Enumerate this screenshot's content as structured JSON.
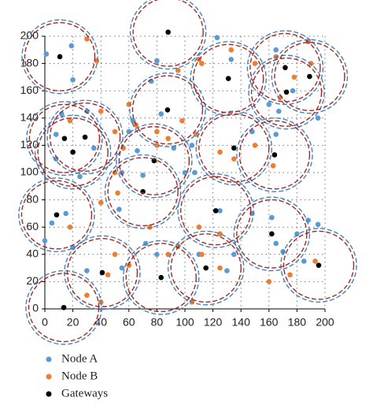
{
  "chart_data": {
    "type": "scatter",
    "xlim": [
      0,
      200
    ],
    "ylim": [
      0,
      200
    ],
    "xticks": [
      0,
      20,
      40,
      60,
      80,
      100,
      120,
      140,
      160,
      180,
      200
    ],
    "yticks": [
      0,
      20,
      40,
      60,
      80,
      100,
      120,
      140,
      160,
      180,
      200
    ],
    "grid": true,
    "series": [
      {
        "name": "Node A",
        "color": "#5b9bd5",
        "x": [
          1,
          19,
          20,
          123,
          80,
          76,
          133,
          165,
          177,
          160,
          167,
          195,
          63,
          83,
          8,
          12,
          8,
          30,
          35,
          92,
          105,
          148,
          165,
          100,
          25,
          66,
          60,
          53,
          55,
          70,
          107,
          125,
          148,
          162,
          180,
          188,
          195,
          15,
          5,
          20,
          30,
          55,
          72,
          80,
          130,
          135,
          110,
          165,
          170,
          185,
          0
        ],
        "y": [
          187,
          193,
          168,
          199,
          182,
          167,
          183,
          190,
          160,
          150,
          145,
          140,
          138,
          143,
          128,
          143,
          110,
          145,
          118,
          118,
          120,
          130,
          128,
          100,
          97,
          116,
          130,
          73,
          100,
          98,
          100,
          72,
          70,
          67,
          55,
          65,
          62,
          70,
          63,
          45,
          28,
          30,
          48,
          40,
          28,
          40,
          40,
          48,
          42,
          35,
          50
        ]
      },
      {
        "name": "Node B",
        "color": "#ed7d31",
        "x": [
          30,
          37,
          133,
          150,
          165,
          188,
          190,
          178,
          168,
          60,
          20,
          40,
          18,
          50,
          56,
          80,
          80,
          88,
          65,
          98,
          95,
          110,
          112,
          108,
          125,
          135,
          150,
          163,
          50,
          52,
          18,
          40,
          110,
          75,
          88,
          112,
          125,
          95,
          50,
          60,
          125,
          193,
          175,
          30,
          45,
          105,
          40,
          160
        ],
        "y": [
          198,
          182,
          190,
          180,
          185,
          196,
          180,
          170,
          155,
          150,
          115,
          145,
          138,
          130,
          118,
          120,
          130,
          125,
          135,
          138,
          175,
          183,
          180,
          128,
          115,
          110,
          120,
          105,
          100,
          85,
          60,
          78,
          60,
          60,
          40,
          40,
          55,
          46,
          40,
          32,
          30,
          35,
          25,
          10,
          25,
          5,
          5,
          20
        ]
      },
      {
        "name": "Gateways",
        "color": "#000000",
        "x": [
          10.7,
          88,
          131,
          171.6,
          189,
          172.5,
          14,
          28.7,
          20,
          87.6,
          135,
          164,
          78,
          70,
          8.4,
          122,
          162,
          41,
          83,
          115,
          195.5,
          13.5
        ],
        "y": [
          185,
          203,
          169,
          177,
          170.5,
          159,
          125,
          126,
          115,
          146,
          118,
          113,
          108.7,
          86,
          69,
          72,
          55,
          26.6,
          23,
          30,
          32,
          1
        ]
      }
    ],
    "ranges": [
      {
        "color": "#4a7fb5",
        "radius": 27
      },
      {
        "color": "#a0282a",
        "radius": 25
      }
    ]
  }
}
